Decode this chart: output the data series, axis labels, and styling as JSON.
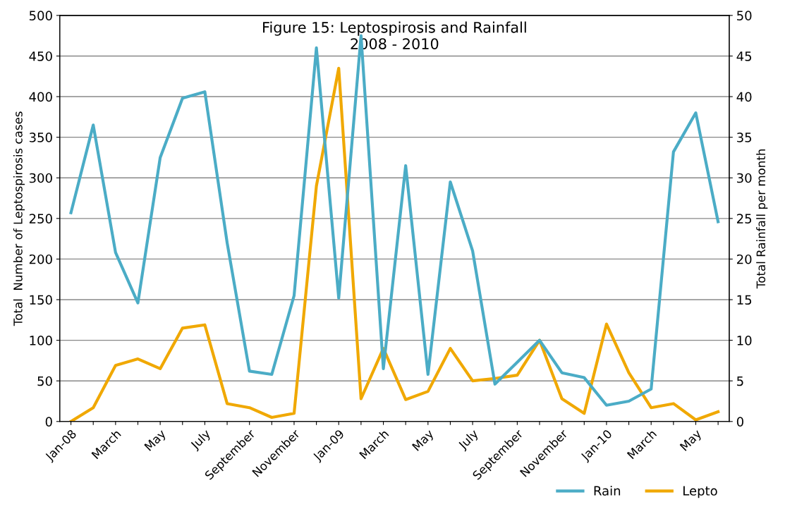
{
  "chart_data": {
    "type": "line",
    "title": "Figure 15: Leptospirosis and Rainfall\n2008 - 2010",
    "ylabel": "Total  Number of Leptospirosis cases",
    "y2label": "Total Rainfall per month",
    "categories": [
      "Jan-08",
      null,
      "March",
      null,
      "May",
      null,
      "July",
      null,
      "September",
      null,
      "November",
      null,
      "Jan-09",
      null,
      "March",
      null,
      "May",
      null,
      "July",
      null,
      "September",
      null,
      "November",
      null,
      "Jan-10",
      null,
      "March",
      null,
      "May",
      null
    ],
    "series": [
      {
        "name": "Rain",
        "color": "#4bacc6",
        "axis": "y2",
        "values": [
          25.7,
          36.5,
          20.8,
          14.6,
          32.5,
          39.8,
          40.6,
          22,
          6.2,
          5.8,
          15.5,
          46,
          15.2,
          47.5,
          6.5,
          31.5,
          5.8,
          29.5,
          21,
          4.6,
          7.3,
          10,
          6,
          5.4,
          2,
          2.5,
          4,
          33.2,
          38,
          24.6
        ]
      },
      {
        "name": "Lepto",
        "color": "#f0a800",
        "values": [
          0,
          17,
          69,
          77,
          65,
          115,
          119,
          22,
          17,
          5,
          10,
          290,
          435,
          28,
          90,
          27,
          37,
          90,
          50,
          53,
          57,
          100,
          28,
          10,
          120,
          60,
          17,
          22,
          2,
          12
        ]
      }
    ],
    "ylim": [
      0,
      500
    ],
    "yticks": [
      0,
      50,
      100,
      150,
      200,
      250,
      300,
      350,
      400,
      450,
      500
    ],
    "y2lim": [
      0,
      50
    ],
    "y2ticks": [
      0,
      5,
      10,
      15,
      20,
      25,
      30,
      35,
      40,
      45,
      50
    ],
    "grid": "y",
    "legend": "bottom right",
    "marker": "none",
    "line_style": "solid"
  }
}
